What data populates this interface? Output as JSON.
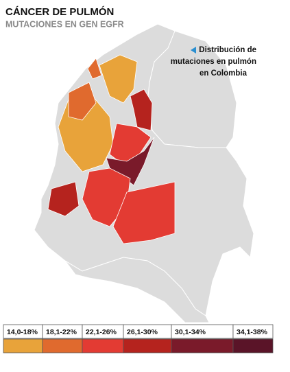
{
  "title": "CÁNCER DE PULMÓN",
  "subtitle": "MUTACIONES EN GEN EGFR",
  "note": [
    "Distribución de",
    "mutaciones en pulmón",
    "en Colombia"
  ],
  "legend": [
    {
      "label": "14,0-18%",
      "color": "#e8a33a"
    },
    {
      "label": "18,1-22%",
      "color": "#e06a2e"
    },
    {
      "label": "22,1-26%",
      "color": "#e33b33"
    },
    {
      "label": "26,1-30%",
      "color": "#b5231e"
    },
    {
      "label": "30,1-34%",
      "color": "#7a1a2a"
    },
    {
      "label": "34,1-38%",
      "color": "#5a1428"
    }
  ]
}
